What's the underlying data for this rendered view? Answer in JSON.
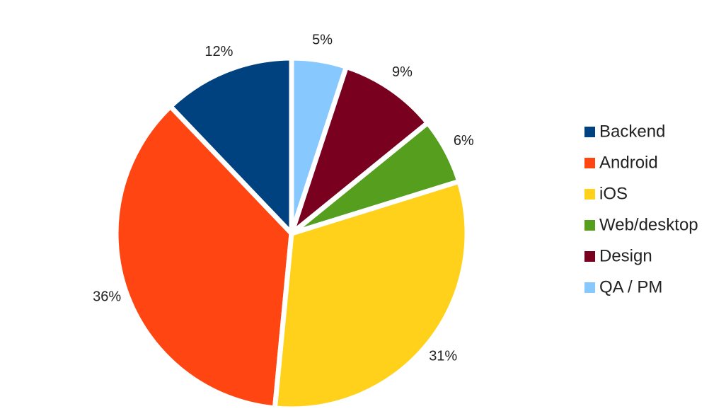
{
  "chart_data": {
    "type": "pie",
    "categories": [
      "Backend",
      "Android",
      "iOS",
      "Web/desktop",
      "Design",
      "QA / PM"
    ],
    "values": [
      12,
      36,
      31,
      6,
      9,
      5
    ],
    "value_labels": [
      "12%",
      "36%",
      "31%",
      "6%",
      "9%",
      "5%"
    ],
    "colors": [
      "#00427f",
      "#ff4612",
      "#ffd11a",
      "#559e1e",
      "#7a0020",
      "#87c9ff"
    ],
    "direction": "counterclockwise",
    "legend": "right"
  }
}
